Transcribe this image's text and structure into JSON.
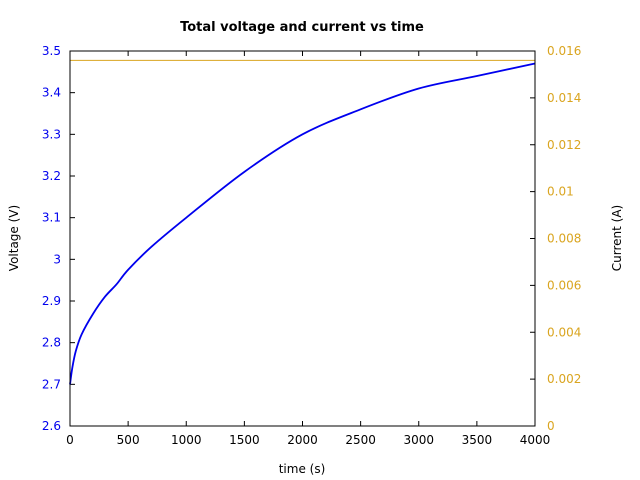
{
  "chart_data": {
    "type": "line",
    "title": "Total voltage and current vs time",
    "xlabel": "time (s)",
    "ylabel_left": "Voltage (V)",
    "ylabel_right": "Current (A)",
    "xlim": [
      0,
      4000
    ],
    "ylim_left": [
      2.6,
      3.5
    ],
    "ylim_right": [
      0,
      0.016
    ],
    "x_ticks": [
      "0",
      "500",
      "1000",
      "1500",
      "2000",
      "2500",
      "3000",
      "3500",
      "4000"
    ],
    "y_left_ticks": [
      "2.6",
      "2.7",
      "2.8",
      "2.9",
      "3",
      "3.1",
      "3.2",
      "3.3",
      "3.4",
      "3.5"
    ],
    "y_right_ticks": [
      "0",
      "0.002",
      "0.004",
      "0.006",
      "0.008",
      "0.01",
      "0.012",
      "0.014",
      "0.016"
    ],
    "grid": false,
    "series": [
      {
        "axis": "left",
        "color": "#0000ee",
        "x": [
          0,
          20,
          50,
          100,
          200,
          300,
          400,
          500,
          700,
          1000,
          1500,
          2000,
          2500,
          3000,
          3500,
          4000
        ],
        "values": [
          2.7,
          2.74,
          2.78,
          2.82,
          2.87,
          2.91,
          2.94,
          2.975,
          3.03,
          3.1,
          3.21,
          3.3,
          3.36,
          3.41,
          3.44,
          3.47
        ]
      },
      {
        "axis": "right",
        "color": "#daa520",
        "x": [
          0,
          4000
        ],
        "values": [
          0.0156,
          0.0156
        ]
      }
    ]
  }
}
